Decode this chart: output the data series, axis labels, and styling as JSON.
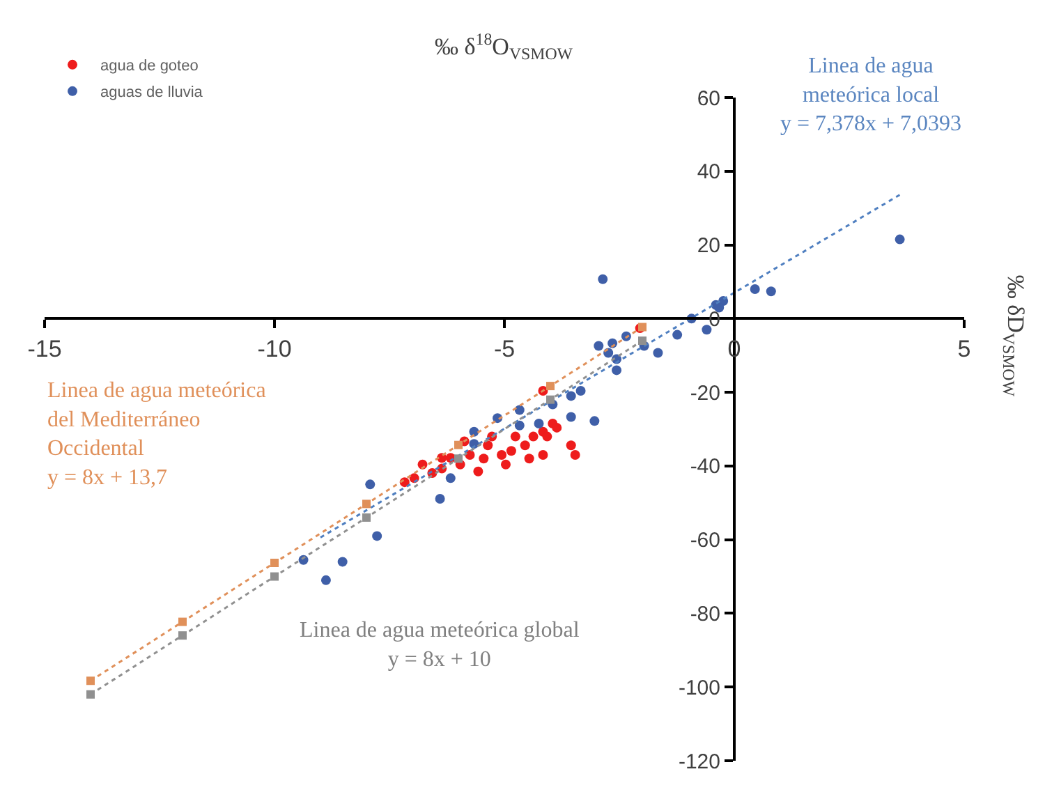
{
  "chart_data": {
    "type": "scatter",
    "xlabel": "‰ δ$^{18}$O$_{VSMOW}$",
    "ylabel": "‰ δD$_{VSMOW}$",
    "xlim": [
      -15,
      5
    ],
    "xticks": [
      -15,
      -10,
      -5,
      0,
      5
    ],
    "ylim": [
      -120,
      60
    ],
    "yticks": [
      -120,
      -100,
      -80,
      -60,
      -40,
      -20,
      0,
      20,
      40,
      60
    ],
    "legend": "top left",
    "marker": "circle",
    "annotations": [
      "Linea de agua\nmeteórica local\ny = 7,378x + 7,0393",
      "Linea de agua meteórica\ndel Mediterráneo\nOccidental\ny = 8x + 13,7",
      "Linea de agua meteórica global\ny = 8x + 10"
    ],
    "series": [
      {
        "name": "agua de goteo",
        "color": "#ee1c1c",
        "x": [
          -4.16,
          -2.05,
          -3.95,
          -3.86,
          -4.16,
          -4.37,
          -4.55,
          -4.85,
          -5.06,
          -5.36,
          -5.45,
          -5.57,
          -5.75,
          -5.96,
          -6.17,
          -6.36,
          -6.57,
          -6.78,
          -6.96,
          -7.17,
          -3.55,
          -3.46,
          -4.16,
          -4.76,
          -5.27,
          -5.87,
          -6.36,
          -4.97,
          -4.46,
          -4.07
        ],
        "values": [
          -19.6,
          -2.6,
          -28.5,
          -29.6,
          -30.7,
          -32,
          -34.4,
          -35.9,
          -37,
          -34.4,
          -38,
          -41.5,
          -37,
          -39.6,
          -37.8,
          -40.7,
          -41.9,
          -39.6,
          -43.3,
          -44.4,
          -34.4,
          -37,
          -37,
          -32,
          -32,
          -33.3,
          -37.8,
          -39.6,
          -38,
          -32
        ]
      },
      {
        "name": "aguas de lluvia",
        "color": "#3f5fa8",
        "x": [
          3.6,
          -2.86,
          0.45,
          0.8,
          -0.24,
          -0.4,
          -0.6,
          -0.93,
          -0.33,
          -1.24,
          -1.66,
          -1.96,
          -2.35,
          -2.65,
          -2.95,
          -2.56,
          -2.56,
          -2.74,
          -3.34,
          -3.55,
          -3.04,
          -3.55,
          -3.95,
          -4.25,
          -4.67,
          -4.67,
          -5.15,
          -5.66,
          -5.66,
          -6.17,
          -6.4,
          -7.92,
          -7.77,
          -8.52,
          -8.88,
          -9.37
        ],
        "values": [
          21.5,
          10.7,
          8,
          7.4,
          4.8,
          3.7,
          -3,
          0,
          3,
          -4.4,
          -9.3,
          -7.4,
          -4.8,
          -6.7,
          -7.4,
          -11,
          -14,
          -9.3,
          -19.6,
          -21,
          -27.8,
          -26.7,
          -23.3,
          -28.5,
          -24.8,
          -29,
          -27,
          -30.7,
          -34,
          -43.3,
          -48.9,
          -45,
          -59,
          -66,
          -71,
          -65.5
        ]
      },
      {
        "type": "line",
        "color": "#4f7fc0",
        "line_style": "dotted",
        "marker": "none",
        "x": [
          -9,
          3.6
        ],
        "values": [
          -59.4,
          33.6
        ]
      },
      {
        "type": "line",
        "color": "#e0905a",
        "line_style": "dotted",
        "marker": "square",
        "x": [
          -14,
          -12,
          -10,
          -8,
          -6,
          -4,
          -2
        ],
        "values": [
          -98.3,
          -82.3,
          -66.3,
          -50.3,
          -34.3,
          -18.3,
          -2.3
        ]
      },
      {
        "type": "line",
        "color": "#909090",
        "line_style": "dotted",
        "marker": "square",
        "x": [
          -14,
          -12,
          -10,
          -8,
          -6,
          -4,
          -2
        ],
        "values": [
          -102,
          -86,
          -70,
          -54,
          -38,
          -22,
          -6
        ]
      }
    ]
  }
}
